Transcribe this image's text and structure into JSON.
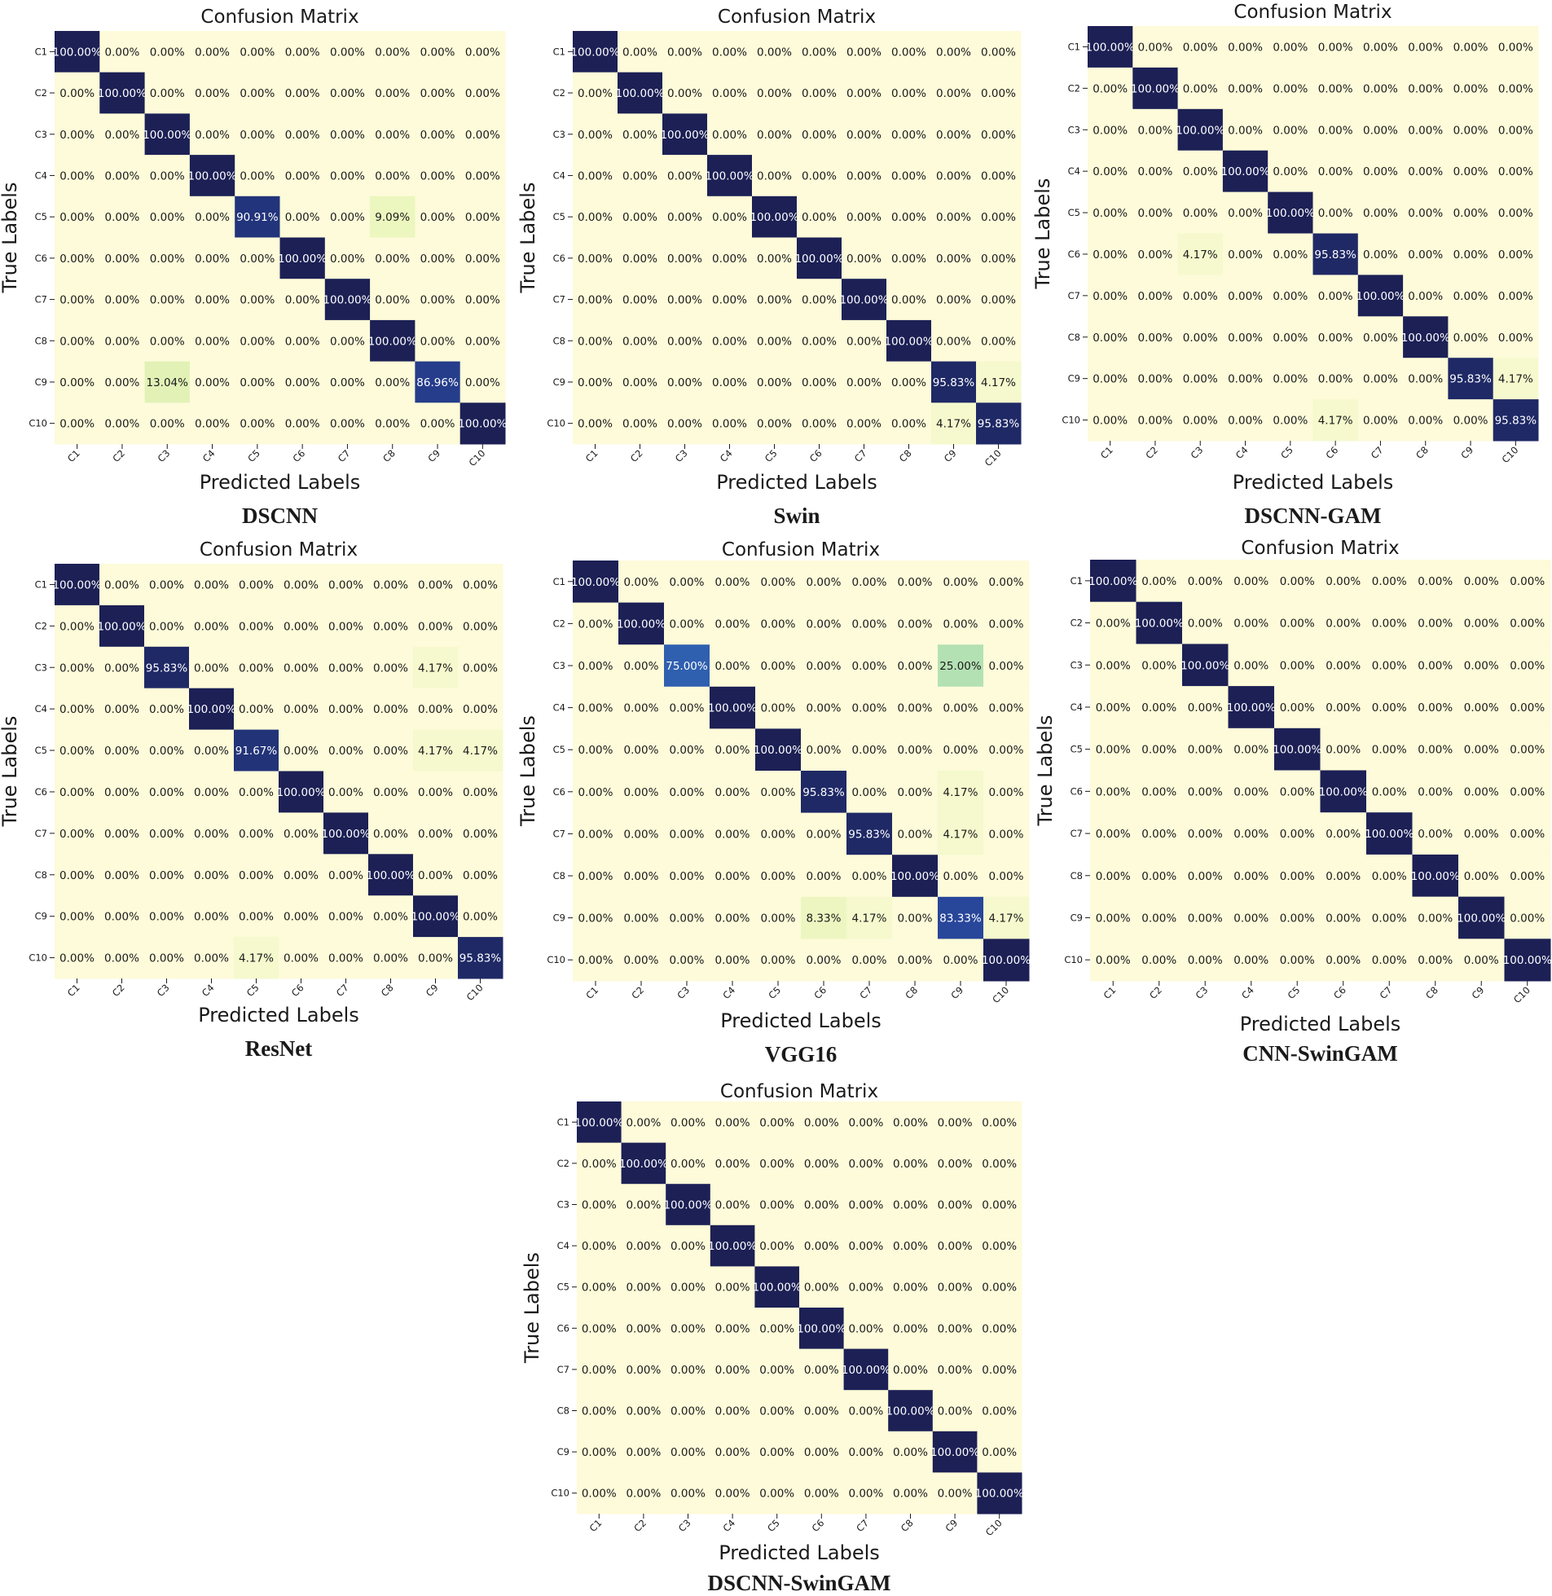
{
  "figure": {
    "chart_title": "Confusion Matrix",
    "xlabel": "Predicted Labels",
    "ylabel": "True Labels",
    "classes": [
      "C1",
      "C2",
      "C3",
      "C4",
      "C5",
      "C6",
      "C7",
      "C8",
      "C9",
      "C10"
    ]
  },
  "colors": {
    "background": "#ffffff",
    "low": "#fdfbd9",
    "mid1": "#e6f4b7",
    "mid2": "#a9dcb2",
    "mid3": "#3b8fc0",
    "mid4": "#2a4da8",
    "high": "#1c2055",
    "text_dark": "#1a1a1a",
    "text_light": "#ffffff"
  },
  "chart_data": [
    {
      "type": "heatmap",
      "model": "DSCNN",
      "title": "Confusion Matrix",
      "xlabel": "Predicted Labels",
      "ylabel": "True Labels",
      "categories": [
        "C1",
        "C2",
        "C3",
        "C4",
        "C5",
        "C6",
        "C7",
        "C8",
        "C9",
        "C10"
      ],
      "value_range": [
        0,
        100
      ],
      "values": [
        [
          100,
          0,
          0,
          0,
          0,
          0,
          0,
          0,
          0,
          0
        ],
        [
          0,
          100,
          0,
          0,
          0,
          0,
          0,
          0,
          0,
          0
        ],
        [
          0,
          0,
          100,
          0,
          0,
          0,
          0,
          0,
          0,
          0
        ],
        [
          0,
          0,
          0,
          100,
          0,
          0,
          0,
          0,
          0,
          0
        ],
        [
          0,
          0,
          0,
          0,
          90.91,
          0,
          0,
          9.09,
          0,
          0
        ],
        [
          0,
          0,
          0,
          0,
          0,
          100,
          0,
          0,
          0,
          0
        ],
        [
          0,
          0,
          0,
          0,
          0,
          0,
          100,
          0,
          0,
          0
        ],
        [
          0,
          0,
          0,
          0,
          0,
          0,
          0,
          100,
          0,
          0
        ],
        [
          0,
          0,
          13.04,
          0,
          0,
          0,
          0,
          0,
          86.96,
          0
        ],
        [
          0,
          0,
          0,
          0,
          0,
          0,
          0,
          0,
          0,
          100
        ]
      ]
    },
    {
      "type": "heatmap",
      "model": "Swin",
      "title": "Confusion Matrix",
      "xlabel": "Predicted Labels",
      "ylabel": "True Labels",
      "categories": [
        "C1",
        "C2",
        "C3",
        "C4",
        "C5",
        "C6",
        "C7",
        "C8",
        "C9",
        "C10"
      ],
      "value_range": [
        0,
        100
      ],
      "values": [
        [
          100,
          0,
          0,
          0,
          0,
          0,
          0,
          0,
          0,
          0
        ],
        [
          0,
          100,
          0,
          0,
          0,
          0,
          0,
          0,
          0,
          0
        ],
        [
          0,
          0,
          100,
          0,
          0,
          0,
          0,
          0,
          0,
          0
        ],
        [
          0,
          0,
          0,
          100,
          0,
          0,
          0,
          0,
          0,
          0
        ],
        [
          0,
          0,
          0,
          0,
          100,
          0,
          0,
          0,
          0,
          0
        ],
        [
          0,
          0,
          0,
          0,
          0,
          100,
          0,
          0,
          0,
          0
        ],
        [
          0,
          0,
          0,
          0,
          0,
          0,
          100,
          0,
          0,
          0
        ],
        [
          0,
          0,
          0,
          0,
          0,
          0,
          0,
          100,
          0,
          0
        ],
        [
          0,
          0,
          0,
          0,
          0,
          0,
          0,
          0,
          95.83,
          4.17
        ],
        [
          0,
          0,
          0,
          0,
          0,
          0,
          0,
          0,
          4.17,
          95.83
        ]
      ]
    },
    {
      "type": "heatmap",
      "model": "DSCNN-GAM",
      "title": "Confusion Matrix",
      "xlabel": "Predicted Labels",
      "ylabel": "True Labels",
      "categories": [
        "C1",
        "C2",
        "C3",
        "C4",
        "C5",
        "C6",
        "C7",
        "C8",
        "C9",
        "C10"
      ],
      "value_range": [
        0,
        100
      ],
      "values": [
        [
          100,
          0,
          0,
          0,
          0,
          0,
          0,
          0,
          0,
          0
        ],
        [
          0,
          100,
          0,
          0,
          0,
          0,
          0,
          0,
          0,
          0
        ],
        [
          0,
          0,
          100,
          0,
          0,
          0,
          0,
          0,
          0,
          0
        ],
        [
          0,
          0,
          0,
          100,
          0,
          0,
          0,
          0,
          0,
          0
        ],
        [
          0,
          0,
          0,
          0,
          100,
          0,
          0,
          0,
          0,
          0
        ],
        [
          0,
          0,
          4.17,
          0,
          0,
          95.83,
          0,
          0,
          0,
          0
        ],
        [
          0,
          0,
          0,
          0,
          0,
          0,
          100,
          0,
          0,
          0
        ],
        [
          0,
          0,
          0,
          0,
          0,
          0,
          0,
          100,
          0,
          0
        ],
        [
          0,
          0,
          0,
          0,
          0,
          0,
          0,
          0,
          95.83,
          4.17
        ],
        [
          0,
          0,
          0,
          0,
          0,
          4.17,
          0,
          0,
          0,
          95.83
        ]
      ]
    },
    {
      "type": "heatmap",
      "model": "ResNet",
      "title": "Confusion Matrix",
      "xlabel": "Predicted Labels",
      "ylabel": "True Labels",
      "categories": [
        "C1",
        "C2",
        "C3",
        "C4",
        "C5",
        "C6",
        "C7",
        "C8",
        "C9",
        "C10"
      ],
      "value_range": [
        0,
        100
      ],
      "values": [
        [
          100,
          0,
          0,
          0,
          0,
          0,
          0,
          0,
          0,
          0
        ],
        [
          0,
          100,
          0,
          0,
          0,
          0,
          0,
          0,
          0,
          0
        ],
        [
          0,
          0,
          95.83,
          0,
          0,
          0,
          0,
          0,
          4.17,
          0
        ],
        [
          0,
          0,
          0,
          100,
          0,
          0,
          0,
          0,
          0,
          0
        ],
        [
          0,
          0,
          0,
          0,
          91.67,
          0,
          0,
          0,
          4.17,
          4.17
        ],
        [
          0,
          0,
          0,
          0,
          0,
          100,
          0,
          0,
          0,
          0
        ],
        [
          0,
          0,
          0,
          0,
          0,
          0,
          100,
          0,
          0,
          0
        ],
        [
          0,
          0,
          0,
          0,
          0,
          0,
          0,
          100,
          0,
          0
        ],
        [
          0,
          0,
          0,
          0,
          0,
          0,
          0,
          0,
          100,
          0
        ],
        [
          0,
          0,
          0,
          0,
          4.17,
          0,
          0,
          0,
          0,
          95.83
        ]
      ]
    },
    {
      "type": "heatmap",
      "model": "VGG16",
      "title": "Confusion Matrix",
      "xlabel": "Predicted Labels",
      "ylabel": "True Labels",
      "categories": [
        "C1",
        "C2",
        "C3",
        "C4",
        "C5",
        "C6",
        "C7",
        "C8",
        "C9",
        "C10"
      ],
      "value_range": [
        0,
        100
      ],
      "values": [
        [
          100,
          0,
          0,
          0,
          0,
          0,
          0,
          0,
          0,
          0
        ],
        [
          0,
          100,
          0,
          0,
          0,
          0,
          0,
          0,
          0,
          0
        ],
        [
          0,
          0,
          75,
          0,
          0,
          0,
          0,
          0,
          25,
          0
        ],
        [
          0,
          0,
          0,
          100,
          0,
          0,
          0,
          0,
          0,
          0
        ],
        [
          0,
          0,
          0,
          0,
          100,
          0,
          0,
          0,
          0,
          0
        ],
        [
          0,
          0,
          0,
          0,
          0,
          95.83,
          0,
          0,
          4.17,
          0
        ],
        [
          0,
          0,
          0,
          0,
          0,
          0,
          95.83,
          0,
          4.17,
          0
        ],
        [
          0,
          0,
          0,
          0,
          0,
          0,
          0,
          100,
          0,
          0
        ],
        [
          0,
          0,
          0,
          0,
          0,
          8.33,
          4.17,
          0,
          83.33,
          4.17
        ],
        [
          0,
          0,
          0,
          0,
          0,
          0,
          0,
          0,
          0,
          100
        ]
      ]
    },
    {
      "type": "heatmap",
      "model": "CNN-SwinGAM",
      "title": "Confusion Matrix",
      "xlabel": "Predicted Labels",
      "ylabel": "True Labels",
      "categories": [
        "C1",
        "C2",
        "C3",
        "C4",
        "C5",
        "C6",
        "C7",
        "C8",
        "C9",
        "C10"
      ],
      "value_range": [
        0,
        100
      ],
      "values": [
        [
          100,
          0,
          0,
          0,
          0,
          0,
          0,
          0,
          0,
          0
        ],
        [
          0,
          100,
          0,
          0,
          0,
          0,
          0,
          0,
          0,
          0
        ],
        [
          0,
          0,
          100,
          0,
          0,
          0,
          0,
          0,
          0,
          0
        ],
        [
          0,
          0,
          0,
          100,
          0,
          0,
          0,
          0,
          0,
          0
        ],
        [
          0,
          0,
          0,
          0,
          100,
          0,
          0,
          0,
          0,
          0
        ],
        [
          0,
          0,
          0,
          0,
          0,
          100,
          0,
          0,
          0,
          0
        ],
        [
          0,
          0,
          0,
          0,
          0,
          0,
          100,
          0,
          0,
          0
        ],
        [
          0,
          0,
          0,
          0,
          0,
          0,
          0,
          100,
          0,
          0
        ],
        [
          0,
          0,
          0,
          0,
          0,
          0,
          0,
          0,
          100,
          0
        ],
        [
          0,
          0,
          0,
          0,
          0,
          0,
          0,
          0,
          0,
          100
        ]
      ]
    },
    {
      "type": "heatmap",
      "model": "DSCNN-SwinGAM",
      "title": "Confusion Matrix",
      "xlabel": "Predicted Labels",
      "ylabel": "True Labels",
      "categories": [
        "C1",
        "C2",
        "C3",
        "C4",
        "C5",
        "C6",
        "C7",
        "C8",
        "C9",
        "C10"
      ],
      "value_range": [
        0,
        100
      ],
      "values": [
        [
          100,
          0,
          0,
          0,
          0,
          0,
          0,
          0,
          0,
          0
        ],
        [
          0,
          100,
          0,
          0,
          0,
          0,
          0,
          0,
          0,
          0
        ],
        [
          0,
          0,
          100,
          0,
          0,
          0,
          0,
          0,
          0,
          0
        ],
        [
          0,
          0,
          0,
          100,
          0,
          0,
          0,
          0,
          0,
          0
        ],
        [
          0,
          0,
          0,
          0,
          100,
          0,
          0,
          0,
          0,
          0
        ],
        [
          0,
          0,
          0,
          0,
          0,
          100,
          0,
          0,
          0,
          0
        ],
        [
          0,
          0,
          0,
          0,
          0,
          0,
          100,
          0,
          0,
          0
        ],
        [
          0,
          0,
          0,
          0,
          0,
          0,
          0,
          100,
          0,
          0
        ],
        [
          0,
          0,
          0,
          0,
          0,
          0,
          0,
          0,
          100,
          0
        ],
        [
          0,
          0,
          0,
          0,
          0,
          0,
          0,
          0,
          0,
          100
        ]
      ]
    }
  ]
}
